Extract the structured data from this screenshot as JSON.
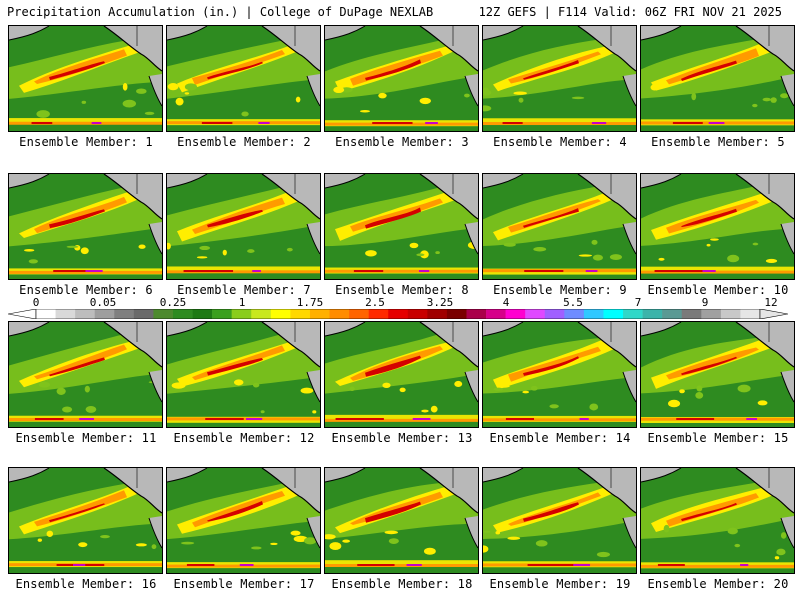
{
  "header": {
    "title": "Precipitation Accumulation (in.) | College of DuPage NEXLAB",
    "run_info": "12Z GEFS | F114 Valid: 06Z FRI NOV 21 2025"
  },
  "colorbar": {
    "labels": [
      "0",
      "0.05",
      "0.25",
      "1",
      "1.75",
      "2.5",
      "3.25",
      "4",
      "5.5",
      "7",
      "9",
      "12"
    ],
    "colors": [
      "#ffffff",
      "#d9d9d9",
      "#bdbdbd",
      "#9e9e9e",
      "#7f7f7f",
      "#6a6a6a",
      "#4d8a2d",
      "#2e8b20",
      "#1e7a14",
      "#3aa01e",
      "#8acd1c",
      "#c8e81e",
      "#ffff00",
      "#ffd800",
      "#ffb000",
      "#ff8c00",
      "#ff6400",
      "#ff2a00",
      "#e60000",
      "#c80000",
      "#a00000",
      "#7a0000",
      "#aa004a",
      "#d6008a",
      "#ff00d0",
      "#e048ff",
      "#a060ff",
      "#6e8cff",
      "#30c8ff",
      "#00ffff",
      "#30d8c8",
      "#3cb4aa",
      "#5a9a94",
      "#7a7a7a",
      "#a0a0a0",
      "#c8c8c8",
      "#e6e6e6"
    ]
  },
  "panels": [
    {
      "caption": "Ensemble Member: 1"
    },
    {
      "caption": "Ensemble Member: 2"
    },
    {
      "caption": "Ensemble Member: 3"
    },
    {
      "caption": "Ensemble Member: 4"
    },
    {
      "caption": "Ensemble Member: 5"
    },
    {
      "caption": "Ensemble Member: 6"
    },
    {
      "caption": "Ensemble Member: 7"
    },
    {
      "caption": "Ensemble Member: 8"
    },
    {
      "caption": "Ensemble Member: 9"
    },
    {
      "caption": "Ensemble Member: 10"
    },
    {
      "caption": "Ensemble Member: 11"
    },
    {
      "caption": "Ensemble Member: 12"
    },
    {
      "caption": "Ensemble Member: 13"
    },
    {
      "caption": "Ensemble Member: 14"
    },
    {
      "caption": "Ensemble Member: 15"
    },
    {
      "caption": "Ensemble Member: 16"
    },
    {
      "caption": "Ensemble Member: 17"
    },
    {
      "caption": "Ensemble Member: 18"
    },
    {
      "caption": "Ensemble Member: 19"
    },
    {
      "caption": "Ensemble Member: 20"
    }
  ],
  "colors": {
    "field_base": "#2e8b20",
    "light_green": "#7fc31c",
    "yellow": "#ffee00",
    "orange": "#ff9a00",
    "red": "#d40000",
    "magenta": "#c800c8",
    "land_gray": "#b8b8b8",
    "coast": "#000000"
  }
}
